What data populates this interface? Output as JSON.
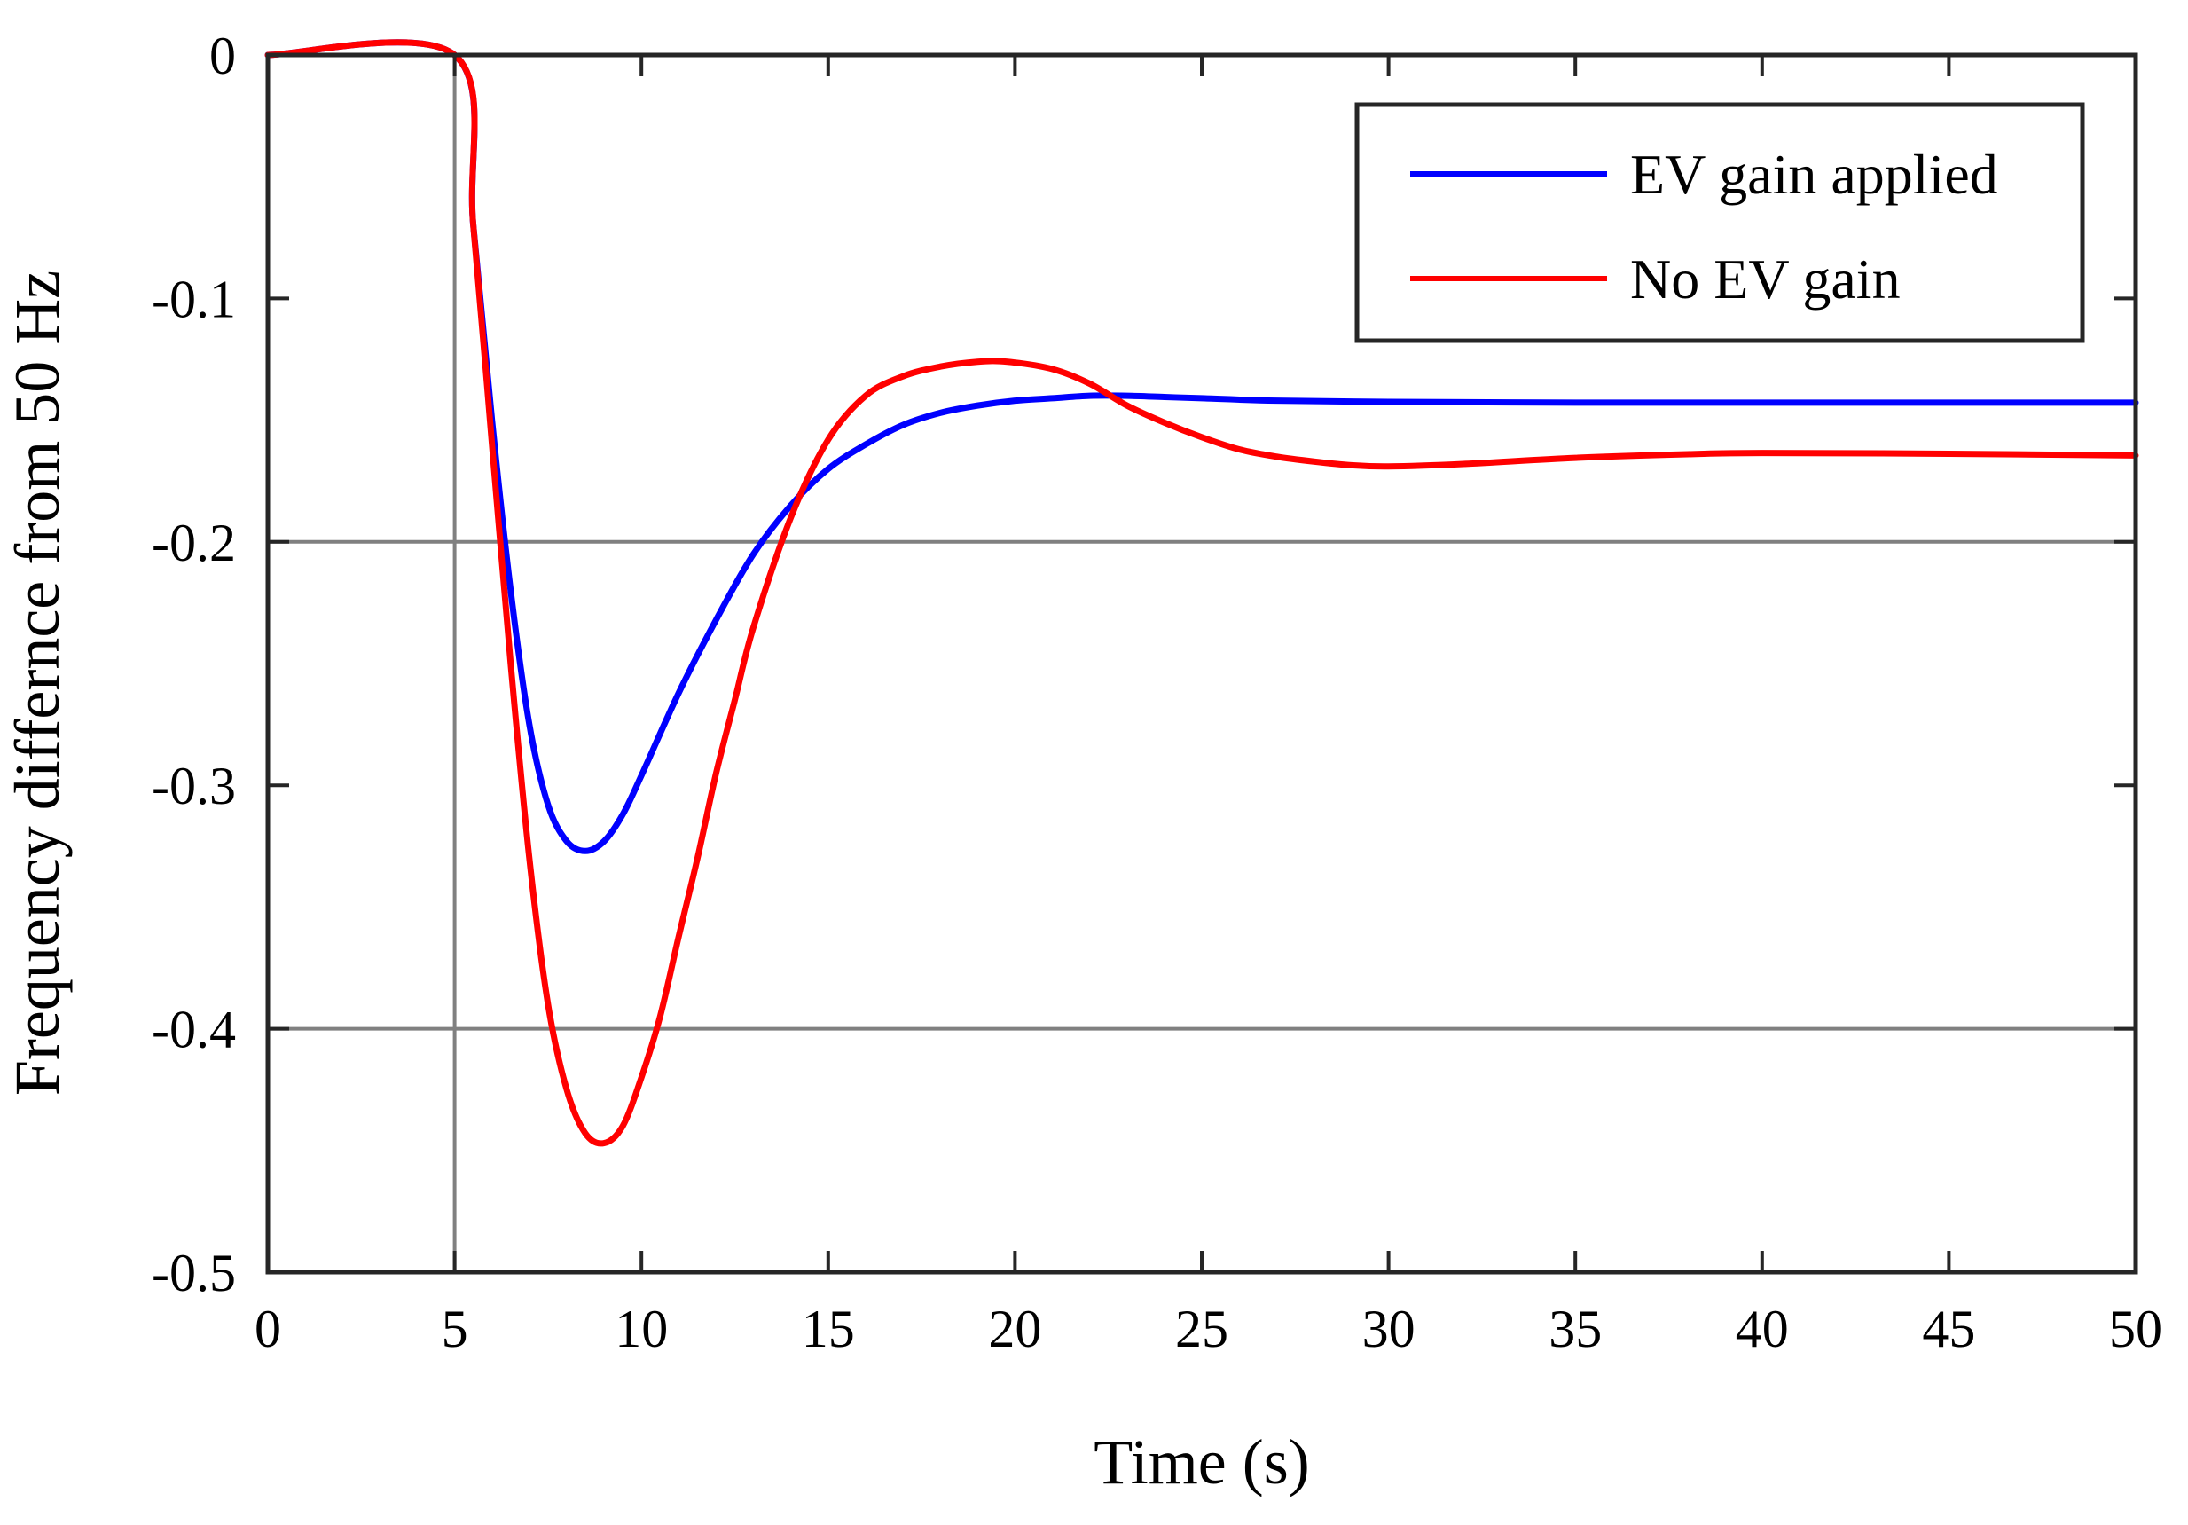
{
  "chart_data": {
    "type": "line",
    "title": "",
    "xlabel": "Time (s)",
    "ylabel": "Frequency differnce from 50 Hz",
    "xlim": [
      0,
      50
    ],
    "ylim": [
      -0.5,
      0
    ],
    "xticks": [
      0,
      5,
      10,
      15,
      20,
      25,
      30,
      35,
      40,
      45,
      50
    ],
    "yticks": [
      0,
      -0.1,
      -0.2,
      -0.3,
      -0.4,
      -0.5
    ],
    "xtick_labels": [
      "0",
      "5",
      "10",
      "15",
      "20",
      "25",
      "30",
      "35",
      "40",
      "45",
      "50"
    ],
    "ytick_labels": [
      "0",
      "-0.1",
      "-0.2",
      "-0.3",
      "-0.4",
      "-0.5"
    ],
    "reference_lines": [
      {
        "axis": "x",
        "value": 5
      },
      {
        "axis": "y",
        "value": -0.2
      },
      {
        "axis": "y",
        "value": -0.4
      }
    ],
    "legend_position": "top-right",
    "series": [
      {
        "name": "EV gain applied",
        "color": "#0000ff",
        "x": [
          0,
          5,
          5.5,
          6,
          6.5,
          7,
          7.5,
          8,
          8.5,
          9,
          9.5,
          10,
          11,
          12,
          13,
          14,
          15,
          16,
          17,
          18,
          19,
          20,
          21,
          22,
          23,
          24,
          25,
          27,
          30,
          35,
          40,
          45,
          50
        ],
        "y": [
          0,
          0,
          -0.07,
          -0.15,
          -0.22,
          -0.275,
          -0.308,
          -0.323,
          -0.327,
          -0.323,
          -0.312,
          -0.296,
          -0.262,
          -0.232,
          -0.205,
          -0.185,
          -0.17,
          -0.16,
          -0.152,
          -0.147,
          -0.144,
          -0.142,
          -0.141,
          -0.14,
          -0.14,
          -0.1405,
          -0.141,
          -0.142,
          -0.1425,
          -0.1428,
          -0.1428,
          -0.1428,
          -0.1428
        ]
      },
      {
        "name": "No EV gain",
        "color": "#ff0000",
        "x": [
          0,
          5,
          5.5,
          6,
          6.5,
          7,
          7.5,
          8,
          8.5,
          9,
          9.5,
          10,
          10.5,
          11,
          11.5,
          12,
          12.5,
          13,
          14,
          15,
          16,
          17,
          18,
          19,
          19.8,
          21,
          22,
          23,
          24,
          25,
          26,
          27,
          28,
          29,
          30,
          32,
          35,
          38,
          40,
          45,
          50
        ],
        "y": [
          0,
          0,
          -0.07,
          -0.16,
          -0.25,
          -0.33,
          -0.39,
          -0.425,
          -0.443,
          -0.447,
          -0.44,
          -0.42,
          -0.395,
          -0.362,
          -0.33,
          -0.295,
          -0.265,
          -0.235,
          -0.19,
          -0.158,
          -0.14,
          -0.132,
          -0.128,
          -0.126,
          -0.126,
          -0.129,
          -0.135,
          -0.144,
          -0.151,
          -0.157,
          -0.162,
          -0.165,
          -0.167,
          -0.1685,
          -0.169,
          -0.168,
          -0.1655,
          -0.164,
          -0.1635,
          -0.1638,
          -0.1645
        ]
      }
    ]
  }
}
